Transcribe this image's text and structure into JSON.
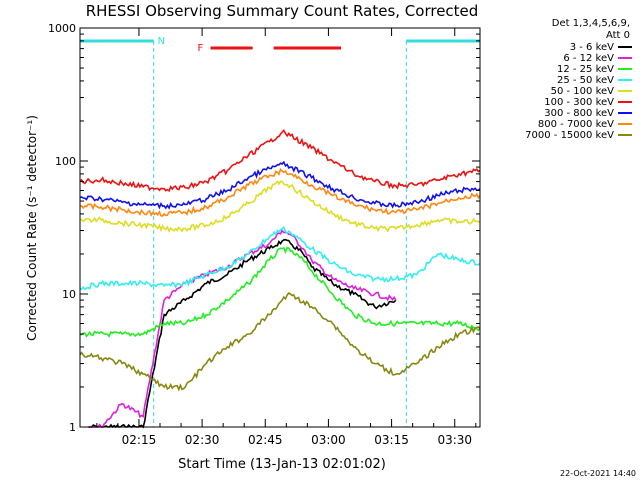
{
  "chart_data": {
    "type": "line",
    "title": "RHESSI Observing Summary Count Rates, Corrected",
    "xlabel": "Start Time (13-Jan-13 02:01:02)",
    "ylabel": "Corrected Count Rate (s⁻¹ detector⁻¹)",
    "x_ticks": [
      "02:15",
      "02:30",
      "02:45",
      "03:00",
      "03:15",
      "03:30"
    ],
    "x_tick_minutes": [
      14,
      29,
      44,
      59,
      74,
      89
    ],
    "xlim_minutes": [
      0,
      95
    ],
    "y_scale": "log",
    "ylim": [
      1,
      1000
    ],
    "y_ticks": [
      "1",
      "10",
      "100",
      "1000"
    ],
    "grid": false,
    "legend_header": [
      "Det 1,3,4,5,6,9,",
      "Att 0"
    ],
    "legend_position": "right",
    "night_marker": "N",
    "flare_marker": "F",
    "night_intervals_minutes": [
      [
        0,
        17.5
      ],
      [
        77.5,
        95
      ]
    ],
    "flare_intervals_minutes": [
      [
        31,
        41
      ],
      [
        46,
        62
      ]
    ],
    "interval_colors": {
      "night": "#33dddd",
      "flare": "#ee1111"
    },
    "series": [
      {
        "name": "3 - 6 keV",
        "color": "#000000",
        "x": [
          2,
          15,
          20,
          25,
          30,
          35,
          40,
          45,
          48,
          50,
          53,
          55,
          60,
          65,
          70,
          75
        ],
        "values": [
          1.0,
          1.0,
          7.0,
          9.0,
          12.0,
          14.0,
          18.0,
          22.0,
          25.0,
          24.0,
          20.0,
          16.0,
          12.0,
          10.0,
          8.0,
          9.0
        ]
      },
      {
        "name": "6 - 12 keV",
        "color": "#dd22dd",
        "x": [
          2,
          5,
          10,
          15,
          20,
          25,
          30,
          35,
          40,
          45,
          48,
          50,
          53,
          55,
          60,
          65,
          70,
          75
        ],
        "values": [
          1.0,
          1.0,
          1.5,
          1.2,
          9.0,
          12.0,
          14.0,
          16.0,
          20.0,
          24.0,
          30.0,
          28.0,
          22.0,
          18.0,
          13.0,
          11.0,
          10.0,
          9.0
        ]
      },
      {
        "name": "12 - 25 keV",
        "color": "#22ee22",
        "x": [
          0,
          10,
          15,
          20,
          25,
          30,
          35,
          40,
          45,
          48,
          50,
          53,
          55,
          60,
          65,
          70,
          75,
          80,
          85,
          90,
          95
        ],
        "values": [
          5.0,
          5.0,
          5.0,
          6.0,
          6.0,
          7.0,
          9.0,
          12.0,
          18.0,
          22.0,
          21.0,
          18.0,
          15.0,
          10.0,
          7.0,
          6.0,
          6.0,
          6.0,
          6.0,
          6.0,
          5.5
        ]
      },
      {
        "name": "25 - 50 keV",
        "color": "#33eeee",
        "x": [
          0,
          5,
          10,
          15,
          20,
          25,
          30,
          35,
          40,
          45,
          48,
          50,
          55,
          60,
          65,
          70,
          75,
          80,
          85,
          90,
          95
        ],
        "values": [
          11.0,
          12.0,
          12.0,
          12.0,
          11.5,
          12.0,
          14.0,
          16.0,
          20.0,
          27.0,
          31.0,
          29.0,
          22.0,
          17.0,
          14.0,
          13.0,
          13.0,
          14.0,
          20.0,
          18.0,
          17.0
        ]
      },
      {
        "name": "50 - 100 keV",
        "color": "#dddd22",
        "x": [
          0,
          5,
          10,
          15,
          20,
          25,
          30,
          35,
          40,
          45,
          48,
          50,
          55,
          60,
          65,
          70,
          75,
          80,
          85,
          90,
          95
        ],
        "values": [
          36.0,
          36.0,
          34.0,
          33.0,
          31.0,
          31.0,
          33.0,
          38.0,
          48.0,
          63.0,
          70.0,
          65.0,
          50.0,
          40.0,
          34.0,
          31.0,
          31.0,
          33.0,
          36.0,
          35.0,
          35.0
        ]
      },
      {
        "name": "100 - 300 keV",
        "color": "#ee1111",
        "x": [
          0,
          5,
          10,
          15,
          20,
          25,
          30,
          35,
          40,
          45,
          48,
          50,
          55,
          60,
          65,
          70,
          75,
          80,
          85,
          90,
          95
        ],
        "values": [
          70.0,
          72.0,
          68.0,
          64.0,
          62.0,
          63.0,
          70.0,
          85.0,
          110.0,
          140.0,
          165.0,
          155.0,
          125.0,
          100.0,
          80.0,
          70.0,
          65.0,
          66.0,
          72.0,
          80.0,
          85.0
        ]
      },
      {
        "name": "300 - 800 keV",
        "color": "#1111ee",
        "x": [
          0,
          5,
          10,
          15,
          20,
          25,
          30,
          35,
          40,
          45,
          48,
          50,
          55,
          60,
          65,
          70,
          75,
          80,
          85,
          90,
          95
        ],
        "values": [
          53.0,
          52.0,
          49.0,
          47.0,
          46.0,
          47.0,
          52.0,
          60.0,
          75.0,
          88.0,
          95.0,
          90.0,
          75.0,
          62.0,
          53.0,
          48.0,
          46.0,
          49.0,
          55.0,
          60.0,
          62.0
        ]
      },
      {
        "name": "800 - 7000 keV",
        "color": "#ff8811",
        "x": [
          0,
          5,
          10,
          15,
          20,
          25,
          30,
          35,
          40,
          45,
          48,
          50,
          55,
          60,
          65,
          70,
          75,
          80,
          85,
          90,
          95
        ],
        "values": [
          46.0,
          45.0,
          43.0,
          41.0,
          40.0,
          41.0,
          45.0,
          53.0,
          66.0,
          78.0,
          84.0,
          80.0,
          66.0,
          55.0,
          47.0,
          43.0,
          41.0,
          43.0,
          48.0,
          53.0,
          55.0
        ]
      },
      {
        "name": "7000 - 15000 keV",
        "color": "#888811",
        "x": [
          0,
          5,
          10,
          15,
          20,
          25,
          30,
          35,
          40,
          45,
          48,
          50,
          55,
          60,
          65,
          70,
          75,
          80,
          85,
          90,
          95
        ],
        "values": [
          3.5,
          3.3,
          3.0,
          2.5,
          2.0,
          2.0,
          3.0,
          4.0,
          5.0,
          7.0,
          9.0,
          10.0,
          8.0,
          6.0,
          4.0,
          3.0,
          2.5,
          3.0,
          4.0,
          5.0,
          5.5
        ]
      }
    ],
    "timestamp": "22-Oct-2021 14:40"
  }
}
